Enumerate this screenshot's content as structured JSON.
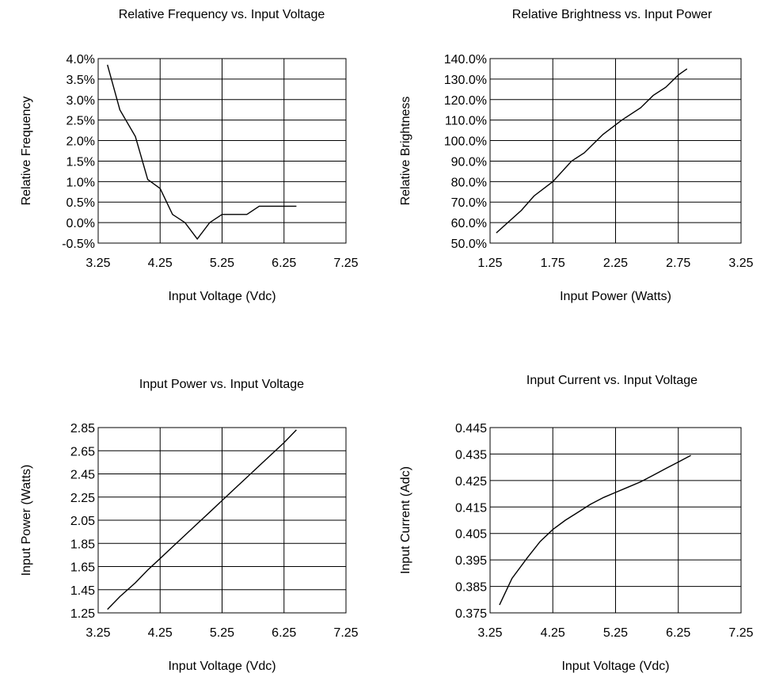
{
  "chart_data": [
    {
      "type": "line",
      "title": "Relative Frequency vs. Input Voltage",
      "xlabel": "Input Voltage (Vdc)",
      "ylabel": "Relative Frequency",
      "xlim": [
        3.25,
        7.25
      ],
      "ylim": [
        -0.005,
        0.04
      ],
      "xticks": [
        3.25,
        4.25,
        5.25,
        6.25,
        7.25
      ],
      "xtick_labels": [
        "3.25",
        "4.25",
        "5.25",
        "6.25",
        "7.25"
      ],
      "yticks": [
        -0.005,
        0,
        0.005,
        0.01,
        0.015,
        0.02,
        0.025,
        0.03,
        0.035,
        0.04
      ],
      "ytick_labels": [
        "-0.5%",
        "0.0%",
        "0.5%",
        "1.0%",
        "1.5%",
        "2.0%",
        "2.5%",
        "3.0%",
        "3.5%",
        "4.0%"
      ],
      "grid": true,
      "x": [
        3.4,
        3.6,
        3.85,
        4.05,
        4.25,
        4.45,
        4.65,
        4.85,
        5.05,
        5.25,
        5.65,
        5.85,
        6.05,
        6.25,
        6.45
      ],
      "y": [
        0.0385,
        0.0275,
        0.021,
        0.0105,
        0.0083,
        0.002,
        0.0,
        -0.004,
        0.0,
        0.002,
        0.002,
        0.004,
        0.004,
        0.004,
        0.004
      ]
    },
    {
      "type": "line",
      "title": "Relative Brightness vs. Input Power",
      "xlabel": "Input Power (Watts)",
      "ylabel": "Relative Brightness",
      "xlim": [
        1.25,
        3.25
      ],
      "ylim": [
        0.5,
        1.4
      ],
      "xticks": [
        1.25,
        1.75,
        2.25,
        2.75,
        3.25
      ],
      "xtick_labels": [
        "1.25",
        "1.75",
        "2.25",
        "2.75",
        "3.25"
      ],
      "yticks": [
        0.5,
        0.6,
        0.7,
        0.8,
        0.9,
        1.0,
        1.1,
        1.2,
        1.3,
        1.4
      ],
      "ytick_labels": [
        "50.0%",
        "60.0%",
        "70.0%",
        "80.0%",
        "90.0%",
        "100.0%",
        "110.0%",
        "120.0%",
        "130.0%",
        "140.0%"
      ],
      "grid": true,
      "x": [
        1.3,
        1.5,
        1.6,
        1.75,
        1.9,
        2.0,
        2.15,
        2.3,
        2.45,
        2.55,
        2.65,
        2.75,
        2.82
      ],
      "y": [
        0.55,
        0.66,
        0.73,
        0.8,
        0.9,
        0.94,
        1.03,
        1.1,
        1.16,
        1.22,
        1.26,
        1.32,
        1.35
      ]
    },
    {
      "type": "line",
      "title": "Input Power vs. Input Voltage",
      "xlabel": "Input Voltage (Vdc)",
      "ylabel": "Input Power (Watts)",
      "xlim": [
        3.25,
        7.25
      ],
      "ylim": [
        1.25,
        2.85
      ],
      "xticks": [
        3.25,
        4.25,
        5.25,
        6.25,
        7.25
      ],
      "xtick_labels": [
        "3.25",
        "4.25",
        "5.25",
        "6.25",
        "7.25"
      ],
      "yticks": [
        1.25,
        1.45,
        1.65,
        1.85,
        2.05,
        2.25,
        2.45,
        2.65,
        2.85
      ],
      "ytick_labels": [
        "1.25",
        "1.45",
        "1.65",
        "1.85",
        "2.05",
        "2.25",
        "2.45",
        "2.65",
        "2.85"
      ],
      "grid": true,
      "x": [
        3.4,
        3.6,
        3.85,
        4.05,
        4.25,
        4.45,
        4.65,
        4.85,
        5.05,
        5.25,
        5.45,
        5.65,
        5.85,
        6.05,
        6.25,
        6.45
      ],
      "y": [
        1.28,
        1.39,
        1.51,
        1.62,
        1.72,
        1.82,
        1.92,
        2.02,
        2.12,
        2.22,
        2.32,
        2.42,
        2.52,
        2.62,
        2.72,
        2.83
      ]
    },
    {
      "type": "line",
      "title": "Input Current vs. Input Voltage",
      "xlabel": "Input Voltage (Vdc)",
      "ylabel": "Input Current (Adc)",
      "xlim": [
        3.25,
        7.25
      ],
      "ylim": [
        0.375,
        0.445
      ],
      "xticks": [
        3.25,
        4.25,
        5.25,
        6.25,
        7.25
      ],
      "xtick_labels": [
        "3.25",
        "4.25",
        "5.25",
        "6.25",
        "7.25"
      ],
      "yticks": [
        0.375,
        0.385,
        0.395,
        0.405,
        0.415,
        0.425,
        0.435,
        0.445
      ],
      "ytick_labels": [
        "0.375",
        "0.385",
        "0.395",
        "0.405",
        "0.415",
        "0.425",
        "0.435",
        "0.445"
      ],
      "grid": true,
      "x": [
        3.4,
        3.6,
        3.85,
        4.05,
        4.25,
        4.45,
        4.65,
        4.85,
        5.05,
        5.25,
        5.45,
        5.65,
        5.85,
        6.05,
        6.25,
        6.45
      ],
      "y": [
        0.378,
        0.388,
        0.396,
        0.402,
        0.4065,
        0.41,
        0.413,
        0.416,
        0.4185,
        0.4205,
        0.4225,
        0.4245,
        0.427,
        0.4295,
        0.432,
        0.4345
      ]
    }
  ]
}
